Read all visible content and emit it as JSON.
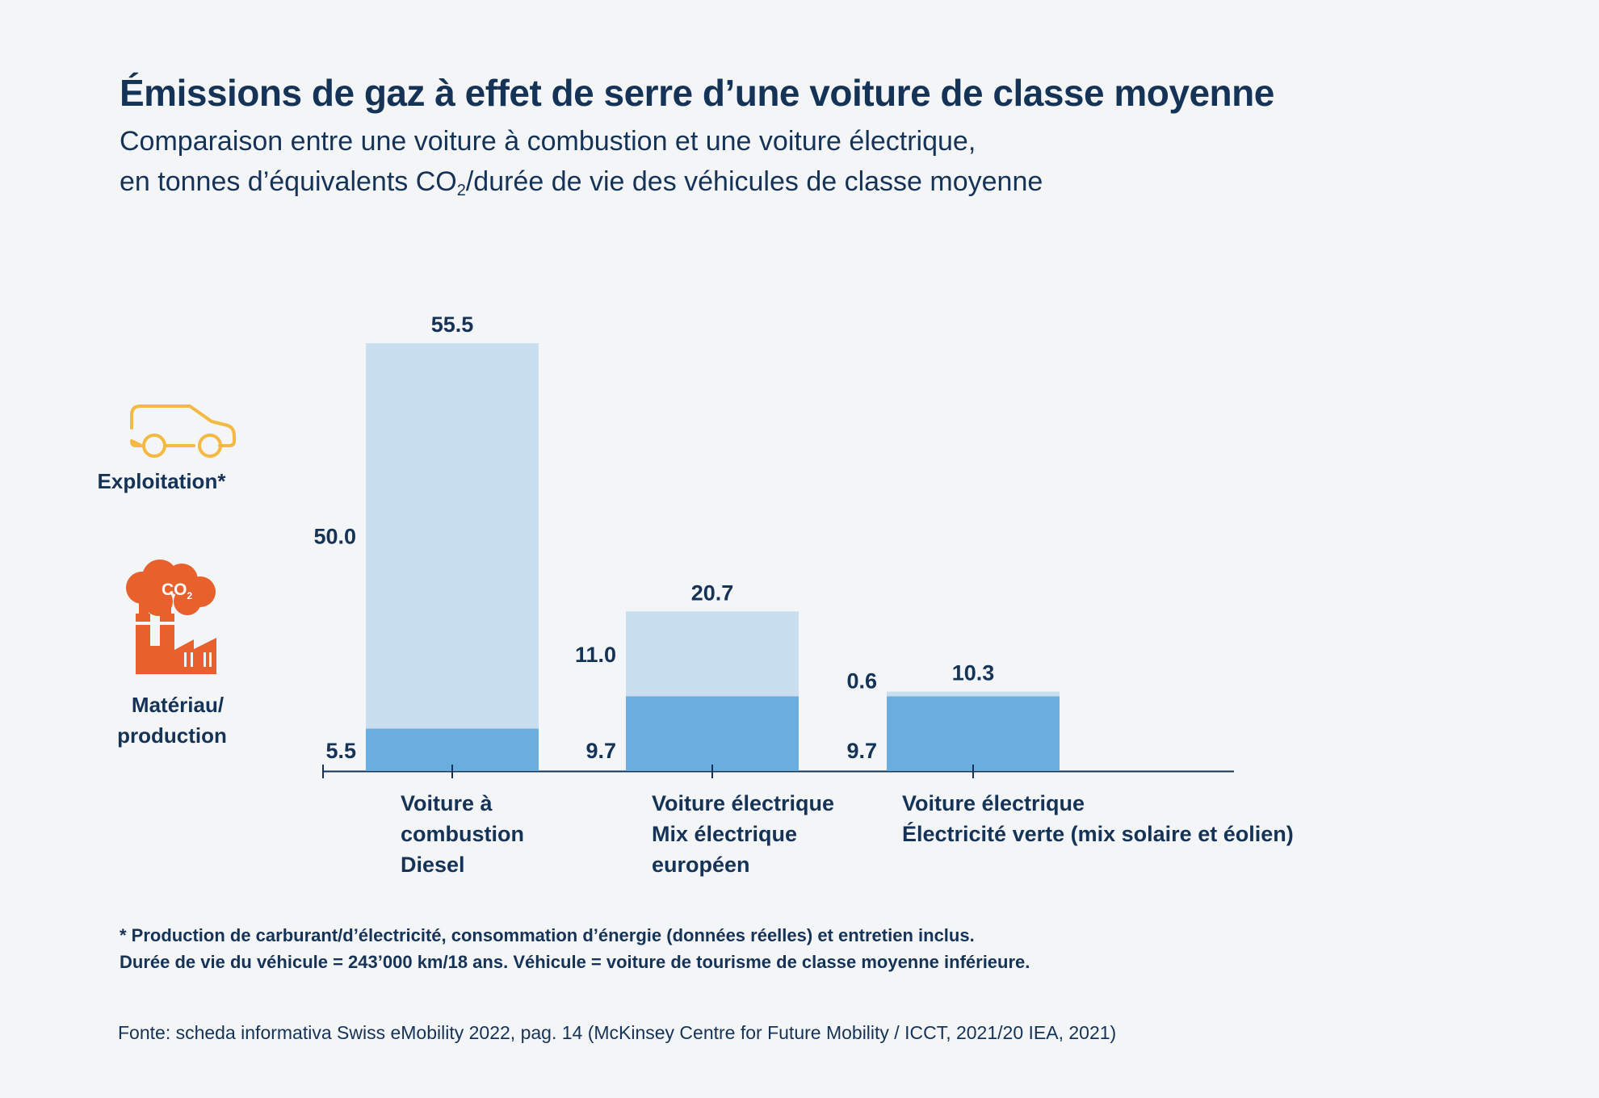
{
  "header": {
    "title": "Émissions de gaz à effet de serre d’une voiture de classe moyenne",
    "subtitle_line1": "Comparaison entre une voiture à combustion et une voiture électrique,",
    "subtitle_line2_pre": "en tonnes d’équivalents CO",
    "subtitle_line2_sub": "2",
    "subtitle_line2_post": "/durée de vie des véhicules de classe moyenne"
  },
  "legend": {
    "operation": {
      "label": "Exploitation*",
      "icon": "car-outline-icon",
      "color": "#c9dff0"
    },
    "material": {
      "label_line1": "Matériau/",
      "label_line2": "production",
      "icon": "factory-co2-icon",
      "icon_text": "CO",
      "icon_text_sub": "2",
      "color": "#6aaee0"
    }
  },
  "chart_data": {
    "type": "bar",
    "stacked": true,
    "categories": [
      [
        "Voiture à",
        "combustion",
        "Diesel"
      ],
      [
        "Voiture électrique",
        "Mix électrique",
        "européen"
      ],
      [
        "Voiture électrique",
        "Électricité verte (mix solaire et éolien)"
      ]
    ],
    "series": [
      {
        "name": "Matériau/production",
        "values": [
          5.5,
          9.7,
          9.7
        ],
        "labels": [
          "5.5",
          "9.7",
          "9.7"
        ],
        "color": "#6aaee0"
      },
      {
        "name": "Exploitation*",
        "values": [
          50.0,
          11.0,
          0.6
        ],
        "labels": [
          "50.0",
          "11.0",
          "0.6"
        ],
        "color": "#c9dff0"
      }
    ],
    "totals": [
      55.5,
      20.7,
      10.3
    ],
    "total_labels": [
      "55.5",
      "20.7",
      "10.3"
    ],
    "ylim": [
      0,
      56
    ],
    "grid": false
  },
  "footer": {
    "note_line1": "* Production de carburant/d’électricité, consommation d’énergie (données réelles) et entretien inclus.",
    "note_line2": "Durée de vie du véhicule = 243’000 km/18 ans. Véhicule = voiture de tourisme de classe moyenne inférieure.",
    "source": "Fonte: scheda informativa Swiss eMobility 2022, pag. 14 (McKinsey Centre for Future Mobility / ICCT, 2021/20 IEA, 2021)"
  },
  "colors": {
    "text": "#153257",
    "icon_car": "#f4b942",
    "icon_factory": "#e8612c",
    "axis": "#153257"
  }
}
